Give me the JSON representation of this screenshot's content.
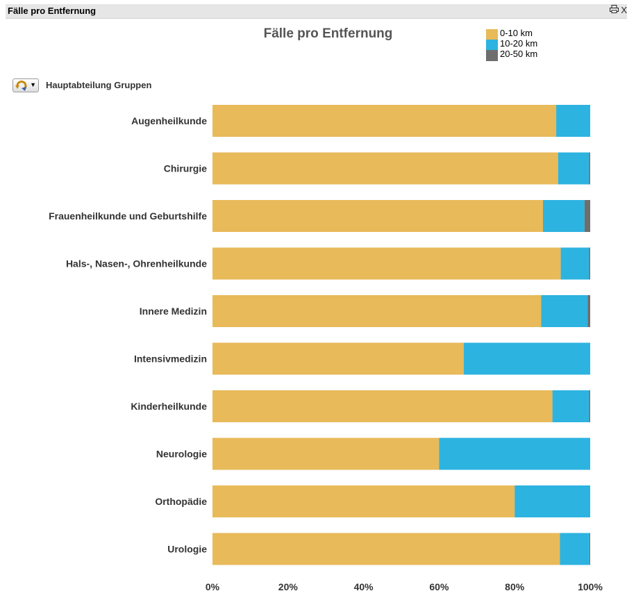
{
  "window": {
    "title": "Fälle pro Entfernung",
    "print_icon": "printer-icon",
    "close_label": "X"
  },
  "dimension_group": {
    "label": "Hauptabteilung Gruppen",
    "cycle_icon": "cycle-group-icon"
  },
  "colors": {
    "0-10 km": "#e8ba5a",
    "10-20 km": "#2db3e0",
    "20-50 km": "#6e6e6e"
  },
  "chart_data": {
    "type": "bar",
    "orientation": "horizontal",
    "stacked": "percent",
    "title": "Fälle pro Entfernung",
    "legend_position": "top-right",
    "categories": [
      "Augenheilkunde",
      "Chirurgie",
      "Frauenheilkunde und Geburtshilfe",
      "Hals-, Nasen-, Ohrenheilkunde",
      "Innere Medizin",
      "Intensivmedizin",
      "Kinderheilkunde",
      "Neurologie",
      "Orthopädie",
      "Urologie"
    ],
    "series": [
      {
        "name": "0-10 km",
        "values": [
          91,
          91.5,
          87.5,
          92.2,
          87,
          66.5,
          90,
          60,
          80,
          92
        ]
      },
      {
        "name": "10-20 km",
        "values": [
          9,
          8.2,
          11,
          7.5,
          12.3,
          33.5,
          9.7,
          40,
          20,
          7.8
        ]
      },
      {
        "name": "20-50 km",
        "values": [
          0,
          0.3,
          1.5,
          0.3,
          0.7,
          0,
          0.3,
          0,
          0,
          0.2
        ]
      }
    ],
    "xlim": [
      0,
      100
    ],
    "x_ticks": [
      "0%",
      "20%",
      "40%",
      "60%",
      "80%",
      "100%"
    ],
    "grid": false
  }
}
